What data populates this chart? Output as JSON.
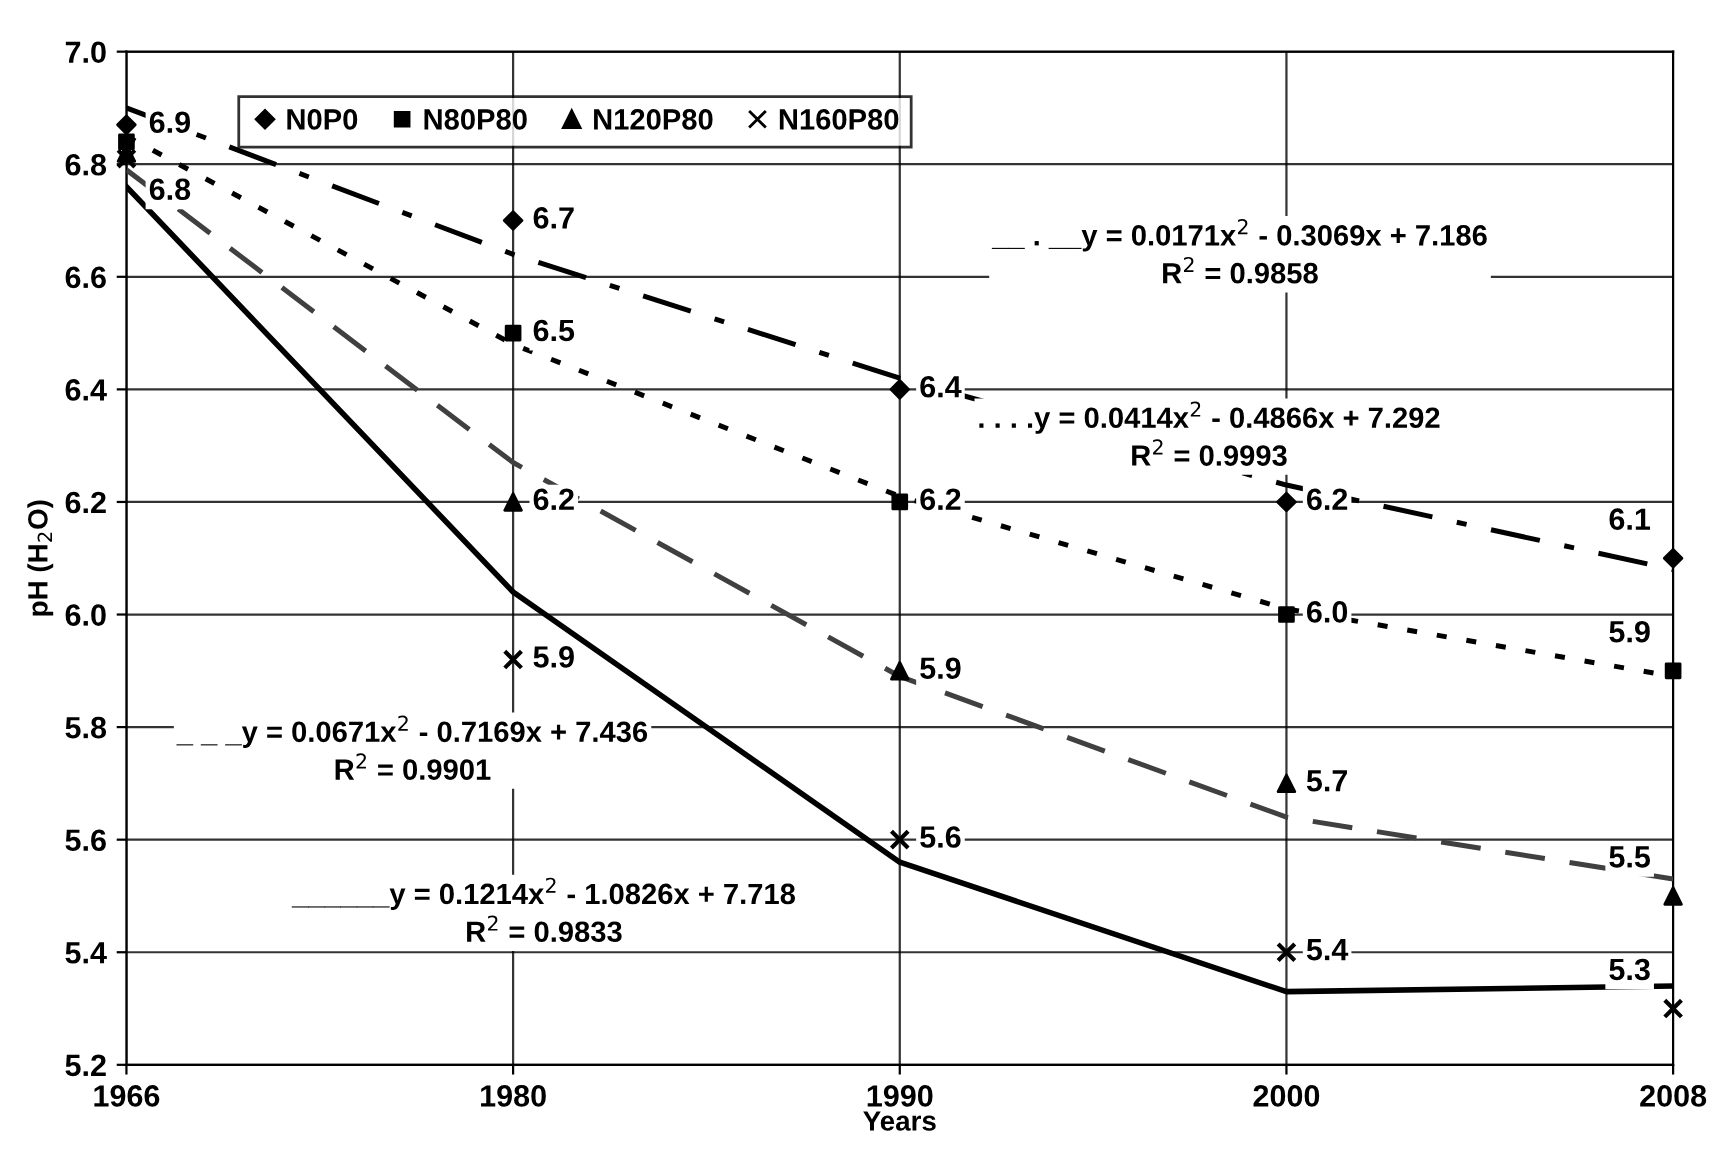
{
  "chart_data": {
    "type": "scatter",
    "xlabel": "Years",
    "ylabel": "pH (H$_{2}$O)",
    "categories": [
      "1966",
      "1980",
      "1990",
      "2000",
      "2008"
    ],
    "ylim": [
      5.2,
      7.0
    ],
    "yticks": [
      {
        "value": 5.2,
        "label": "5.2"
      },
      {
        "value": 5.4,
        "label": "5.4"
      },
      {
        "value": 5.6,
        "label": "5.6"
      },
      {
        "value": 5.8,
        "label": "5.8"
      },
      {
        "value": 6.0,
        "label": "6.0"
      },
      {
        "value": 6.2,
        "label": "6.2"
      },
      {
        "value": 6.4,
        "label": "6.4"
      },
      {
        "value": 6.6,
        "label": "6.6"
      },
      {
        "value": 6.8,
        "label": "6.8"
      },
      {
        "value": 7.0,
        "label": "7.0"
      }
    ],
    "grid": true,
    "legend": "top",
    "series": [
      {
        "name": "N0P0",
        "marker": "diamond",
        "color": "#000000",
        "values": [
          6.87,
          6.7,
          6.4,
          6.2,
          6.1
        ],
        "value_labels": [
          "6.9",
          "6.7",
          "6.4",
          "6.2",
          "6.1"
        ]
      },
      {
        "name": "N80P80",
        "marker": "square",
        "color": "#000000",
        "values": [
          6.84,
          6.5,
          6.2,
          6.0,
          5.9
        ],
        "value_labels": [
          null,
          "6.5",
          "6.2",
          "6.0",
          "5.9"
        ]
      },
      {
        "name": "N120P80",
        "marker": "triangle",
        "color": "#000000",
        "values": [
          6.82,
          6.2,
          5.9,
          5.7,
          5.5
        ],
        "value_labels": [
          "6.8",
          "6.2",
          "5.9",
          "5.7",
          "5.5"
        ]
      },
      {
        "name": "N160P80",
        "marker": "cross",
        "color": "#000000",
        "values": [
          6.81,
          5.92,
          5.6,
          5.4,
          5.3
        ],
        "value_labels": [
          null,
          "5.9",
          "5.6",
          "5.4",
          "5.3"
        ]
      },
      {
        "type": "line",
        "line_style": "dashdot",
        "color": "#000000",
        "values": [
          6.9,
          6.64,
          6.42,
          6.23,
          6.08
        ]
      },
      {
        "type": "line",
        "line_style": "dotted",
        "color": "#000000",
        "values": [
          6.85,
          6.48,
          6.21,
          6.01,
          5.89
        ]
      },
      {
        "type": "line",
        "line_style": "dashed",
        "color": "#404040",
        "values": [
          6.79,
          6.27,
          5.89,
          5.64,
          5.53
        ]
      },
      {
        "type": "line",
        "line_style": "solid",
        "color": "#000000",
        "values": [
          6.76,
          6.04,
          5.56,
          5.33,
          5.34
        ]
      }
    ],
    "annotations": [
      "__ . __y = 0.0171x$^{2}$ - 0.3069x + 7.186\nR$^{2}$ = 0.9858",
      ". . . .y = 0.0414x$^{2}$ - 0.4866x + 7.292\nR$^{2}$ = 0.9993",
      "_ _ _y = 0.0671x$^{2}$ - 0.7169x + 7.436\nR$^{2}$ = 0.9901",
      "______y = 0.1214x$^{2}$ - 1.0826x + 7.718\nR$^{2}$ = 0.9833"
    ]
  }
}
